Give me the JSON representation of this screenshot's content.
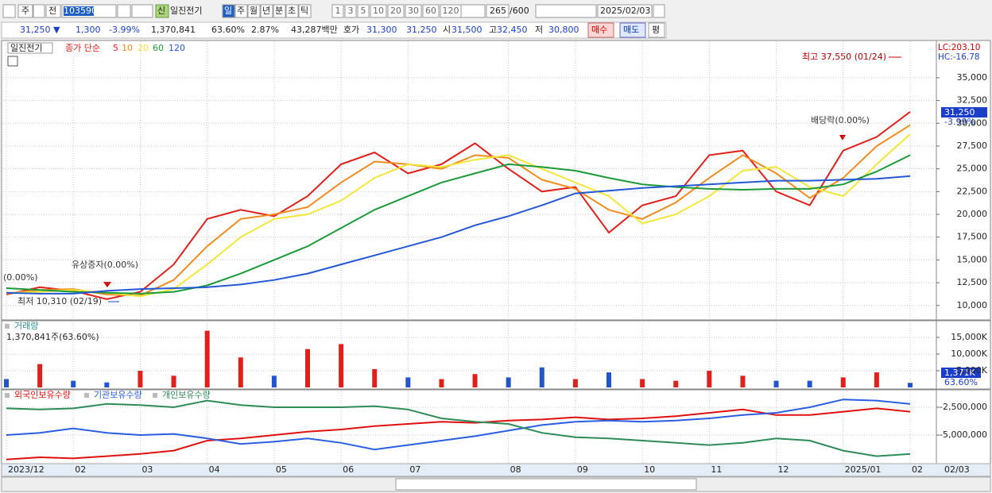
{
  "toolbar": {
    "market": "주",
    "kind": "전",
    "code": "103590",
    "tag": "신",
    "name": "일진전기",
    "periods": [
      "일",
      "주",
      "월",
      "년",
      "분",
      "초",
      "틱"
    ],
    "intervals": [
      "1",
      "3",
      "5",
      "10",
      "20",
      "30",
      "60",
      "120"
    ],
    "count": "265",
    "max": "/600",
    "date": "2025/02/03"
  },
  "quote": {
    "price": "31,250 ▼",
    "change": "1,300",
    "rate": "-3.99%",
    "volume": "1,370,841",
    "vol_rate": "63.60%",
    "turnover": "2.87%",
    "amount": "43,287백만",
    "bid_label": "호가",
    "ask": "31,300",
    "bid": "31,250",
    "open_label": "시",
    "open": "31,500",
    "high_label": "고",
    "high": "32,450",
    "low_label": "저",
    "low": "30,800",
    "buy": "매수",
    "sell": "매도",
    "avg": "평"
  },
  "chart_data": [
    {
      "type": "line",
      "stock_name": "일진전기",
      "legend_prefix": "종가 단순",
      "categories": [
        "2023/12",
        null,
        "02",
        null,
        "03",
        null,
        "04",
        null,
        "05",
        null,
        "06",
        null,
        "07",
        null,
        null,
        "08",
        null,
        "09",
        null,
        "10",
        null,
        "11",
        null,
        "12",
        null,
        "2025/01",
        null,
        "02"
      ],
      "current_date": "02/03",
      "ylim": [
        8500,
        39000
      ],
      "yticks": [
        {
          "value": 10000,
          "label": "10,000"
        },
        {
          "value": 12500,
          "label": "12,500"
        },
        {
          "value": 15000,
          "label": "15,000"
        },
        {
          "value": 17500,
          "label": "17,500"
        },
        {
          "value": 20000,
          "label": "20,000"
        },
        {
          "value": 22500,
          "label": "22,500"
        },
        {
          "value": 25000,
          "label": "25,000"
        },
        {
          "value": 27500,
          "label": "27,500"
        },
        {
          "value": 30000,
          "label": "30,000"
        },
        {
          "value": 32500,
          "label": "32,500"
        },
        {
          "value": 35000,
          "label": "35,000"
        }
      ],
      "grid": true,
      "series": [
        {
          "name": "5",
          "color": "#e0201b",
          "values": [
            11200,
            12000,
            11600,
            10700,
            11500,
            14500,
            19500,
            20500,
            19800,
            22000,
            25500,
            26800,
            24500,
            25500,
            27800,
            25000,
            22500,
            23000,
            18000,
            21000,
            22000,
            26500,
            27000,
            22500,
            21000,
            27000,
            28500,
            31250
          ]
        },
        {
          "name": "10",
          "color": "#f08c1e",
          "values": [
            11300,
            11700,
            11800,
            11200,
            11100,
            12800,
            16500,
            19500,
            20000,
            20800,
            23500,
            25800,
            25500,
            25000,
            26500,
            26200,
            23800,
            22800,
            20500,
            19500,
            21300,
            24000,
            26500,
            24500,
            21800,
            24000,
            27500,
            29800
          ]
        },
        {
          "name": "20",
          "color": "#f3e63a",
          "values": [
            11400,
            11500,
            11700,
            11400,
            11000,
            11800,
            14500,
            17500,
            19500,
            20000,
            21500,
            24000,
            25500,
            25200,
            26000,
            26500,
            25000,
            23500,
            22000,
            19000,
            20000,
            22000,
            24800,
            25200,
            23000,
            22000,
            25500,
            28800
          ]
        },
        {
          "name": "60",
          "color": "#1c9a3a",
          "values": [
            11900,
            11700,
            11500,
            11400,
            11300,
            11500,
            12200,
            13500,
            15000,
            16500,
            18500,
            20500,
            22000,
            23500,
            24500,
            25500,
            25200,
            24800,
            24000,
            23300,
            23000,
            22800,
            22700,
            22800,
            22800,
            23300,
            24700,
            26500
          ]
        },
        {
          "name": "120",
          "color": "#2457d6",
          "values": [
            11400,
            11300,
            11300,
            11600,
            11800,
            11900,
            12000,
            12300,
            12800,
            13500,
            14500,
            15500,
            16500,
            17500,
            18800,
            19800,
            21000,
            22300,
            22600,
            22900,
            23100,
            23300,
            23500,
            23700,
            23700,
            23800,
            23900,
            24200
          ]
        }
      ],
      "annotations": {
        "lc": "LC:203.10",
        "hc": "HC:-16.78",
        "high": "최고 37,550 (01/24)",
        "dividend": "배당락(0.00%)",
        "rights": "유상증자(0.00%)",
        "left": "(0.00%)",
        "low": "최저 10,310 (02/19)",
        "price": "31,250",
        "rate": "-3.99%"
      }
    },
    {
      "type": "bar",
      "ylim": [
        0,
        20000
      ],
      "yticks": [
        {
          "value": 5000,
          "label": "5,000K"
        },
        {
          "value": 10000,
          "label": "10,000K"
        },
        {
          "value": 15000,
          "label": "15,000K"
        }
      ],
      "grid": true,
      "series": [
        {
          "name": "거래량",
          "color": "#2255cc",
          "values": [
            2500,
            7000,
            2000,
            1500,
            5000,
            3500,
            17000,
            9000,
            3500,
            11500,
            13000,
            5500,
            3000,
            2500,
            4000,
            3000,
            6000,
            2500,
            4500,
            2500,
            2000,
            5000,
            3500,
            2000,
            2000,
            3000,
            4500,
            1371
          ]
        }
      ],
      "colors": [
        "#2255cc",
        "#e0201b",
        "#2255cc",
        "#2255cc",
        "#e0201b",
        "#e0201b",
        "#e0201b",
        "#e0201b",
        "#2255cc",
        "#e0201b",
        "#e0201b",
        "#e0201b",
        "#2255cc",
        "#e0201b",
        "#e0201b",
        "#2255cc",
        "#2255cc",
        "#e0201b",
        "#2255cc",
        "#e0201b",
        "#e0201b",
        "#e0201b",
        "#e0201b",
        "#2255cc",
        "#2255cc",
        "#e0201b",
        "#e0201b",
        "#2255cc"
      ],
      "annotations": {
        "total": "1,370,841주(63.60%)",
        "last": "1,371K",
        "rate": "63.60%"
      }
    },
    {
      "type": "line",
      "ylim": [
        -7500000,
        -1000000
      ],
      "yticks": [
        {
          "value": -5000000,
          "label": "-5,000,000"
        },
        {
          "value": -2500000,
          "label": "-2,500,000"
        }
      ],
      "grid": true,
      "series": [
        {
          "name": "외국인보유수량",
          "color": "#e01010",
          "values": [
            -7200000,
            -7000000,
            -7100000,
            -6900000,
            -6700000,
            -6400000,
            -5500000,
            -5300000,
            -5000000,
            -4700000,
            -4500000,
            -4200000,
            -4000000,
            -3800000,
            -3900000,
            -3700000,
            -3600000,
            -3400000,
            -3600000,
            -3500000,
            -3300000,
            -3000000,
            -2700000,
            -3200000,
            -3200000,
            -2900000,
            -2600000,
            -2900000
          ]
        },
        {
          "name": "기관보유수량",
          "color": "#2a5ee0",
          "values": [
            -5000000,
            -4800000,
            -4400000,
            -4800000,
            -5000000,
            -4900000,
            -5300000,
            -5800000,
            -5600000,
            -5300000,
            -5700000,
            -6300000,
            -5900000,
            -5500000,
            -5100000,
            -4600000,
            -4100000,
            -3800000,
            -3700000,
            -3800000,
            -3700000,
            -3500000,
            -3200000,
            -3000000,
            -2500000,
            -1800000,
            -1900000,
            -2200000
          ]
        },
        {
          "name": "개인보유수량",
          "color": "#2e8b57",
          "values": [
            -2600000,
            -2700000,
            -2600000,
            -2200000,
            -2300000,
            -2500000,
            -1900000,
            -2300000,
            -2500000,
            -2500000,
            -2500000,
            -2400000,
            -2700000,
            -3500000,
            -3800000,
            -4000000,
            -4800000,
            -5200000,
            -5300000,
            -5500000,
            -5700000,
            -5900000,
            -5700000,
            -5300000,
            -5500000,
            -6400000,
            -6900000,
            -6700000
          ]
        }
      ]
    }
  ]
}
